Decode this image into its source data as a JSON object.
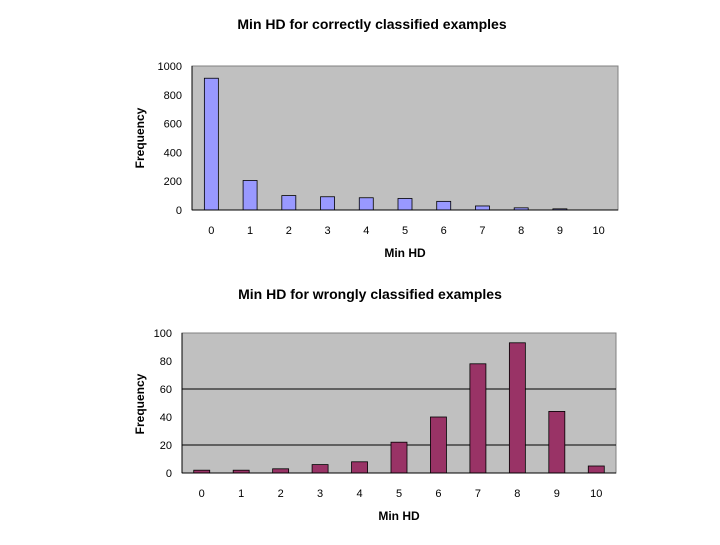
{
  "chart_data": [
    {
      "type": "bar",
      "title": "Min HD for correctly classified examples",
      "xlabel": "Min HD",
      "ylabel": "Frequency",
      "categories": [
        "0",
        "1",
        "2",
        "3",
        "4",
        "5",
        "6",
        "7",
        "8",
        "9",
        "10"
      ],
      "values": [
        915,
        205,
        100,
        92,
        85,
        80,
        60,
        28,
        15,
        8,
        0
      ],
      "ylim": [
        0,
        1000
      ],
      "yticks": [
        "0",
        "200",
        "400",
        "600",
        "800",
        "1000"
      ],
      "gridlines": [],
      "bar_color": "#9999ff",
      "plot_bg": "#c0c0c0",
      "legend": "none"
    },
    {
      "type": "bar",
      "title": "Min HD for wrongly classified examples",
      "xlabel": "Min HD",
      "ylabel": "Frequency",
      "categories": [
        "0",
        "1",
        "2",
        "3",
        "4",
        "5",
        "6",
        "7",
        "8",
        "9",
        "10"
      ],
      "values": [
        2,
        2,
        3,
        6,
        8,
        22,
        40,
        78,
        93,
        44,
        5
      ],
      "ylim": [
        0,
        100
      ],
      "yticks": [
        "0",
        "20",
        "40",
        "60",
        "80",
        "100"
      ],
      "gridlines": [
        20,
        60
      ],
      "bar_color": "#993366",
      "plot_bg": "#c0c0c0",
      "legend": "none"
    }
  ]
}
